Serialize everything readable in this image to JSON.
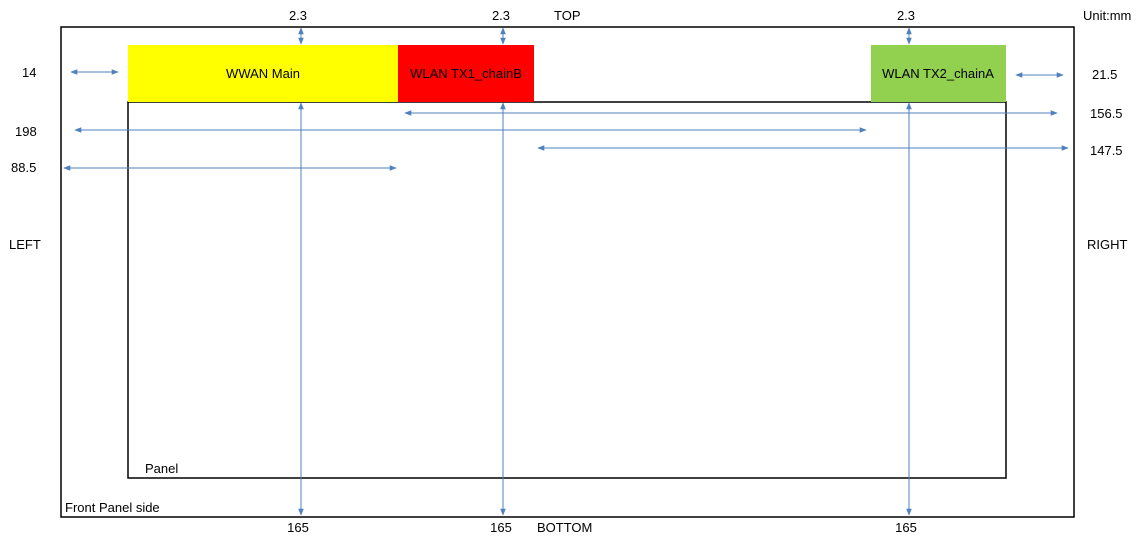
{
  "unit_label": "Unit:mm",
  "sides": {
    "top": "TOP",
    "bottom": "BOTTOM",
    "left": "LEFT",
    "right": "RIGHT"
  },
  "outer_box_label": "Front Panel side",
  "panel_label": "Panel",
  "antennas": [
    {
      "label": "WWAN Main",
      "color": "#ffff00"
    },
    {
      "label": "WLAN TX1_chainB",
      "color": "#ff0000"
    },
    {
      "label": "WLAN TX2_chainA",
      "color": "#92d050"
    }
  ],
  "dimensions": {
    "top_gap": [
      "2.3",
      "2.3",
      "2.3"
    ],
    "bottom_length": [
      "165",
      "165",
      "165"
    ],
    "left_values": [
      "14",
      "198",
      "88.5"
    ],
    "right_values": [
      "21.5",
      "156.5",
      "147.5"
    ]
  },
  "arrow_color": "#4f81bd"
}
